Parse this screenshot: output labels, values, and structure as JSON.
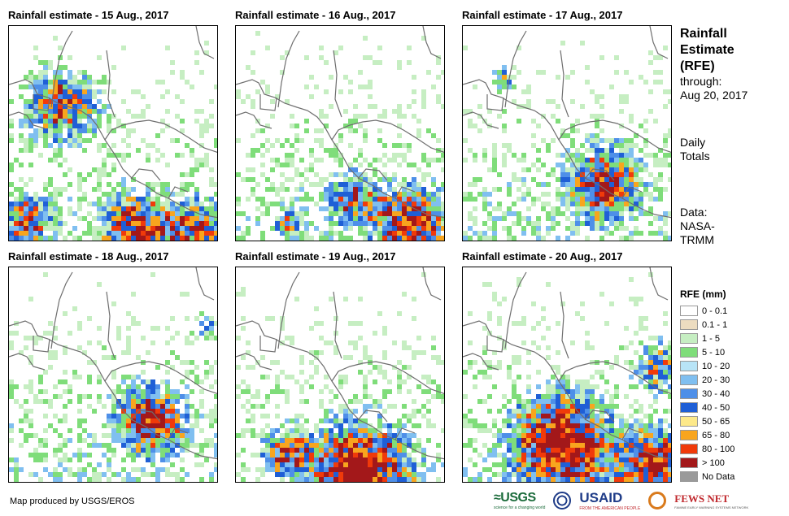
{
  "panels": [
    {
      "title": "Rainfall estimate - 15 Aug., 2017"
    },
    {
      "title": "Rainfall estimate - 16 Aug., 2017"
    },
    {
      "title": "Rainfall estimate - 17 Aug., 2017"
    },
    {
      "title": "Rainfall estimate - 18 Aug., 2017"
    },
    {
      "title": "Rainfall estimate - 19 Aug., 2017"
    },
    {
      "title": "Rainfall estimate - 20 Aug., 2017"
    }
  ],
  "side": {
    "title_line1": "Rainfall",
    "title_line2": "Estimate",
    "title_line3": "(RFE)",
    "through": "through:",
    "date": "Aug 20, 2017",
    "daily1": "Daily",
    "daily2": "Totals",
    "data1": "Data:",
    "data2": "NASA-",
    "data3": "TRMM"
  },
  "legend": {
    "title": "RFE (mm)",
    "items": [
      {
        "label": "0 - 0.1",
        "color": "#ffffff"
      },
      {
        "label": "0.1 - 1",
        "color": "#ecdcc0"
      },
      {
        "label": "1 - 5",
        "color": "#c6eec2"
      },
      {
        "label": "5 - 10",
        "color": "#7fdd7a"
      },
      {
        "label": "10 - 20",
        "color": "#b8e4f7"
      },
      {
        "label": "20 - 30",
        "color": "#80bff0"
      },
      {
        "label": "30 - 40",
        "color": "#4e8fe8"
      },
      {
        "label": "40 - 50",
        "color": "#1f5fd6"
      },
      {
        "label": "50 - 65",
        "color": "#fde98a"
      },
      {
        "label": "65 - 80",
        "color": "#f8a51e"
      },
      {
        "label": "80 - 100",
        "color": "#f03a0a"
      },
      {
        "label": "> 100",
        "color": "#a3181a"
      },
      {
        "label": "No Data",
        "color": "#9a9a9a"
      }
    ]
  },
  "footer": {
    "credit": "Map produced by USGS/EROS"
  },
  "logos": {
    "usgs": "≈USGS",
    "usgs_tag": "science for a changing world",
    "usaid": "USAID",
    "usaid_tag": "FROM THE AMERICAN PEOPLE",
    "fews": "FEWS NET",
    "fews_tag": "FAMINE EARLY WARNING SYSTEMS NETWORK"
  },
  "colors": {
    "coastline": "#6e6e6e",
    "border": "#000000"
  }
}
